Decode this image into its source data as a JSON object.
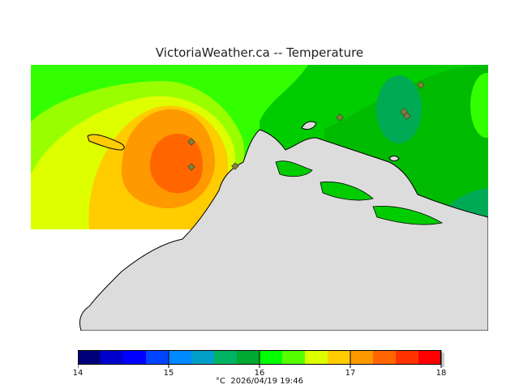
{
  "title": "VictoriaWeather.ca -- Temperature",
  "colorbar": {
    "colors": [
      "#00007a",
      "#0000cc",
      "#0000ff",
      "#0044ff",
      "#0088ff",
      "#00a0c8",
      "#00b464",
      "#00aa33",
      "#00ff00",
      "#55ff00",
      "#ddff00",
      "#ffcc00",
      "#ff9900",
      "#ff6600",
      "#ff3300",
      "#ff0000"
    ],
    "tick_labels": [
      "14",
      "15",
      "16",
      "17",
      "18"
    ],
    "min": 14,
    "max": 18
  },
  "caption": {
    "unit": "°C",
    "timestamp": "2026/04/19 19:46"
  },
  "palette": {
    "land": "#dcdcdc",
    "coast": "#000000",
    "station": "#808040"
  }
}
